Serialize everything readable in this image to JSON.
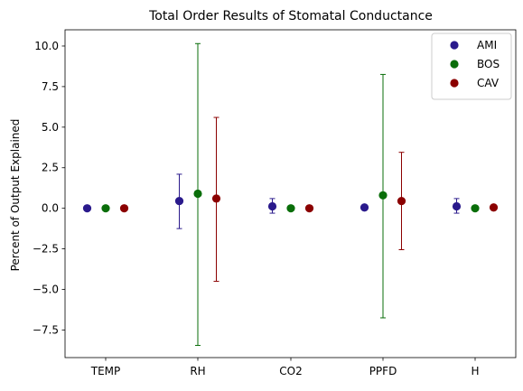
{
  "chart_data": {
    "type": "scatter",
    "title": "Total Order Results of Stomatal Conductance",
    "xlabel": "",
    "ylabel": "Percent of Output Explained",
    "categories": [
      "TEMP",
      "RH",
      "CO2",
      "PPFD",
      "H"
    ],
    "ylim": [
      -9.2,
      11.0
    ],
    "yticks": [
      -7.5,
      -5.0,
      -2.5,
      0.0,
      2.5,
      5.0,
      7.5,
      10.0
    ],
    "ytick_labels": [
      "−7.5",
      "−5.0",
      "−2.5",
      "0.0",
      "2.5",
      "5.0",
      "7.5",
      "10.0"
    ],
    "grid": false,
    "legend": "top-right",
    "series": [
      {
        "name": "AMI",
        "color": "#2a1a8c",
        "values": [
          0.0,
          0.45,
          0.12,
          0.05,
          0.12
        ],
        "err_low": [
          null,
          -1.25,
          -0.3,
          null,
          -0.3
        ],
        "err_high": [
          null,
          2.1,
          0.6,
          null,
          0.6
        ]
      },
      {
        "name": "BOS",
        "color": "#0a6e0a",
        "values": [
          0.0,
          0.9,
          0.0,
          0.8,
          0.0
        ],
        "err_low": [
          null,
          -8.45,
          null,
          -6.75,
          null
        ],
        "err_high": [
          null,
          10.15,
          null,
          8.25,
          null
        ]
      },
      {
        "name": "CAV",
        "color": "#8b0000",
        "values": [
          0.0,
          0.6,
          0.0,
          0.45,
          0.05
        ],
        "err_low": [
          null,
          -4.5,
          null,
          -2.55,
          null
        ],
        "err_high": [
          null,
          5.6,
          null,
          3.45,
          null
        ]
      }
    ]
  }
}
